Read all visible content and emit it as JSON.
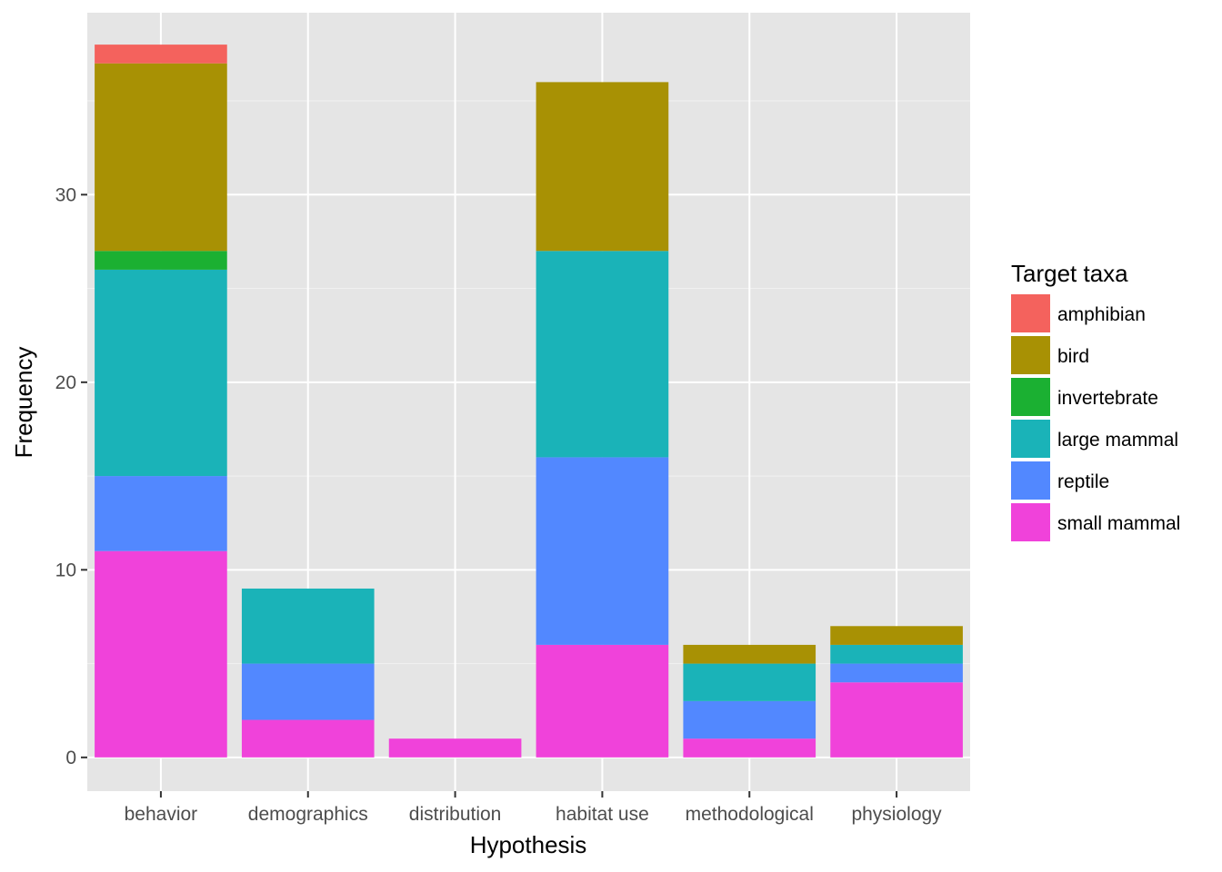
{
  "chart_data": {
    "type": "bar",
    "stacked": true,
    "xlabel": "Hypothesis",
    "ylabel": "Frequency",
    "categories": [
      "behavior",
      "demographics",
      "distribution",
      "habitat use",
      "methodological",
      "physiology"
    ],
    "ylim": [
      -1.8,
      39.7
    ],
    "yticks": [
      0,
      10,
      20,
      30
    ],
    "grid": true,
    "legend": {
      "title": "Target taxa",
      "position": "right"
    },
    "series": [
      {
        "name": "small mammal",
        "color": "#F042DA",
        "values": [
          11,
          2,
          1,
          6,
          1,
          4
        ]
      },
      {
        "name": "reptile",
        "color": "#5288FF",
        "values": [
          4,
          3,
          0,
          10,
          2,
          1
        ]
      },
      {
        "name": "large mammal",
        "color": "#1AB3B8",
        "values": [
          11,
          4,
          0,
          11,
          2,
          1
        ]
      },
      {
        "name": "invertebrate",
        "color": "#1BB032",
        "values": [
          1,
          0,
          0,
          0,
          0,
          0
        ]
      },
      {
        "name": "bird",
        "color": "#A89104",
        "values": [
          10,
          0,
          0,
          9,
          1,
          1
        ]
      },
      {
        "name": "amphibian",
        "color": "#F4625D",
        "values": [
          1,
          0,
          0,
          0,
          0,
          0
        ]
      }
    ],
    "legend_order": [
      "amphibian",
      "bird",
      "invertebrate",
      "large mammal",
      "reptile",
      "small mammal"
    ]
  }
}
